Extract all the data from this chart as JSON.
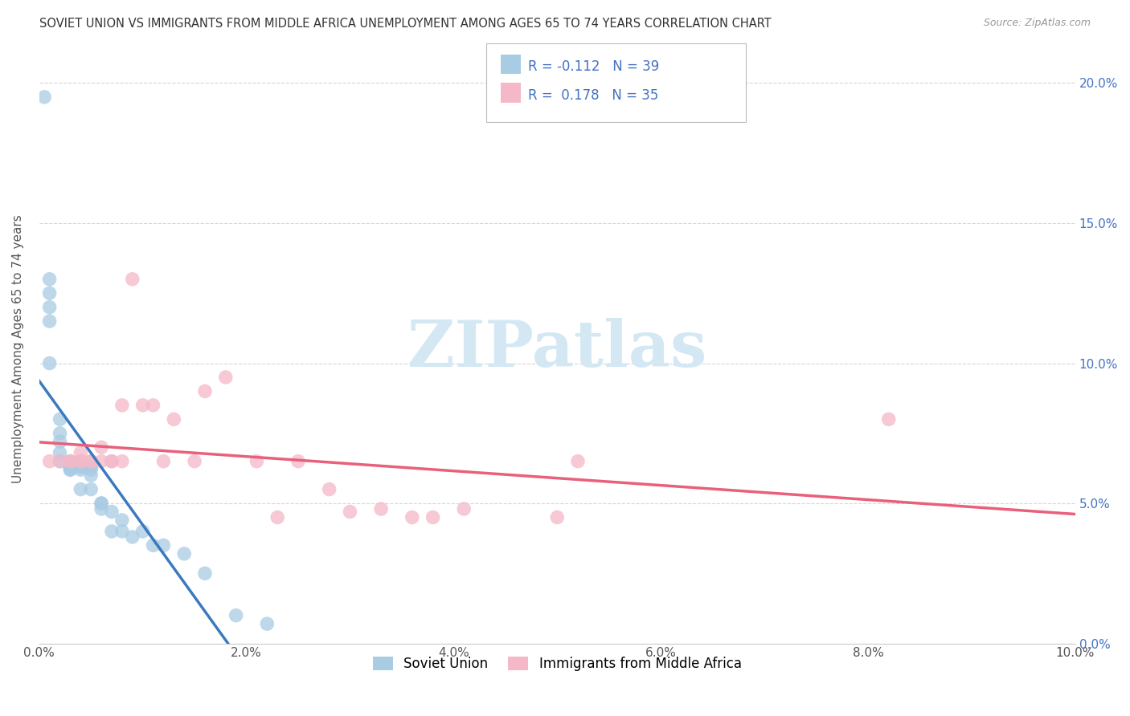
{
  "title": "SOVIET UNION VS IMMIGRANTS FROM MIDDLE AFRICA UNEMPLOYMENT AMONG AGES 65 TO 74 YEARS CORRELATION CHART",
  "source": "Source: ZipAtlas.com",
  "ylabel": "Unemployment Among Ages 65 to 74 years",
  "xlabel_ticks": [
    "0.0%",
    "2.0%",
    "4.0%",
    "6.0%",
    "8.0%",
    "10.0%"
  ],
  "ylabel_ticks": [
    "0.0%",
    "5.0%",
    "10.0%",
    "15.0%",
    "20.0%"
  ],
  "xmin": 0.0,
  "xmax": 0.1,
  "ymin": 0.0,
  "ymax": 0.21,
  "legend1_label": "Soviet Union",
  "legend2_label": "Immigrants from Middle Africa",
  "r1": -0.112,
  "n1": 39,
  "r2": 0.178,
  "n2": 35,
  "color_blue": "#a8cce4",
  "color_pink": "#f4b8c8",
  "color_blue_line": "#3a7abf",
  "color_pink_line": "#e8607a",
  "color_dashed_line": "#aaccee",
  "watermark_color": "#d4e8f4",
  "soviet_x": [
    0.0005,
    0.001,
    0.001,
    0.001,
    0.001,
    0.001,
    0.002,
    0.002,
    0.002,
    0.002,
    0.002,
    0.003,
    0.003,
    0.003,
    0.003,
    0.003,
    0.004,
    0.004,
    0.004,
    0.004,
    0.005,
    0.005,
    0.005,
    0.005,
    0.006,
    0.006,
    0.006,
    0.007,
    0.007,
    0.008,
    0.008,
    0.009,
    0.01,
    0.011,
    0.012,
    0.014,
    0.016,
    0.019,
    0.022
  ],
  "soviet_y": [
    0.195,
    0.13,
    0.125,
    0.12,
    0.115,
    0.1,
    0.08,
    0.075,
    0.072,
    0.068,
    0.065,
    0.065,
    0.063,
    0.063,
    0.062,
    0.062,
    0.063,
    0.063,
    0.062,
    0.055,
    0.063,
    0.062,
    0.06,
    0.055,
    0.05,
    0.05,
    0.048,
    0.047,
    0.04,
    0.044,
    0.04,
    0.038,
    0.04,
    0.035,
    0.035,
    0.032,
    0.025,
    0.01,
    0.007
  ],
  "africa_x": [
    0.001,
    0.002,
    0.003,
    0.003,
    0.004,
    0.004,
    0.004,
    0.005,
    0.005,
    0.006,
    0.006,
    0.007,
    0.007,
    0.008,
    0.008,
    0.009,
    0.01,
    0.011,
    0.012,
    0.013,
    0.015,
    0.016,
    0.018,
    0.021,
    0.023,
    0.025,
    0.028,
    0.03,
    0.033,
    0.036,
    0.038,
    0.041,
    0.05,
    0.052,
    0.082
  ],
  "africa_y": [
    0.065,
    0.065,
    0.065,
    0.065,
    0.068,
    0.065,
    0.065,
    0.065,
    0.065,
    0.07,
    0.065,
    0.065,
    0.065,
    0.085,
    0.065,
    0.13,
    0.085,
    0.085,
    0.065,
    0.08,
    0.065,
    0.09,
    0.095,
    0.065,
    0.045,
    0.065,
    0.055,
    0.047,
    0.048,
    0.045,
    0.045,
    0.048,
    0.045,
    0.065,
    0.08
  ]
}
